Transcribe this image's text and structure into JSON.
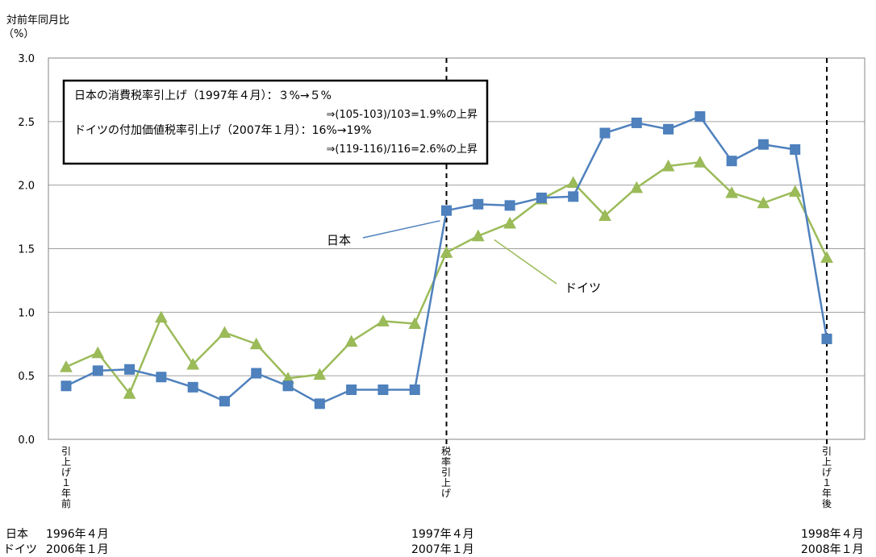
{
  "chart_data": {
    "type": "line",
    "ylabel_line1": "対前年同月比",
    "ylabel_line2": "（%）",
    "ylim": [
      0,
      3.0
    ],
    "yticks": [
      "0.0",
      "0.5",
      "1.0",
      "1.5",
      "2.0",
      "2.5",
      "3.0"
    ],
    "grid": true,
    "x": [
      1,
      2,
      3,
      4,
      5,
      6,
      7,
      8,
      9,
      10,
      11,
      12,
      13,
      14,
      15,
      16,
      17,
      18,
      19,
      20,
      21,
      22,
      23,
      24,
      25
    ],
    "series": [
      {
        "name": "日本",
        "color": "#4f81bd",
        "marker": "square",
        "values": [
          0.42,
          0.54,
          0.55,
          0.49,
          0.41,
          0.3,
          0.52,
          0.42,
          0.28,
          0.39,
          0.39,
          0.39,
          1.8,
          1.85,
          1.84,
          1.9,
          1.91,
          2.41,
          2.49,
          2.44,
          2.54,
          2.19,
          2.32,
          2.28,
          0.79
        ]
      },
      {
        "name": "ドイツ",
        "color": "#9bbb59",
        "marker": "triangle",
        "values": [
          0.57,
          0.68,
          0.36,
          0.96,
          0.59,
          0.84,
          0.75,
          0.48,
          0.51,
          0.77,
          0.93,
          0.91,
          1.47,
          1.6,
          1.7,
          1.89,
          2.02,
          1.76,
          1.98,
          2.15,
          2.18,
          1.94,
          1.86,
          1.95,
          1.43
        ]
      }
    ],
    "vlines": [
      13,
      25
    ],
    "annotation_box": {
      "line1": "日本の消費税率引上げ（1997年４月）：３%→５%",
      "line2": "⇒(105-103)/103=1.9%の上昇",
      "line3": "ドイツの付加価値税率引上げ（2007年１月）：16%→19%",
      "line4": "⇒(119-116)/116=2.6%の上昇"
    },
    "callouts": [
      {
        "label": "日本",
        "series_index": 0
      },
      {
        "label": "ドイツ",
        "series_index": 1
      }
    ],
    "x_markers": [
      {
        "x": 1,
        "label": "引上げ１年前"
      },
      {
        "x": 13,
        "label": "税率引上げ"
      },
      {
        "x": 25,
        "label": "引上げ１年後"
      }
    ],
    "footer": {
      "japan_label": "日本",
      "germany_label": "ドイツ",
      "left_japan": "1996年４月",
      "left_germany": "2006年１月",
      "mid_japan": "1997年４月",
      "mid_germany": "2007年１月",
      "right_japan": "1998年４月",
      "right_germany": "2008年１月"
    }
  }
}
